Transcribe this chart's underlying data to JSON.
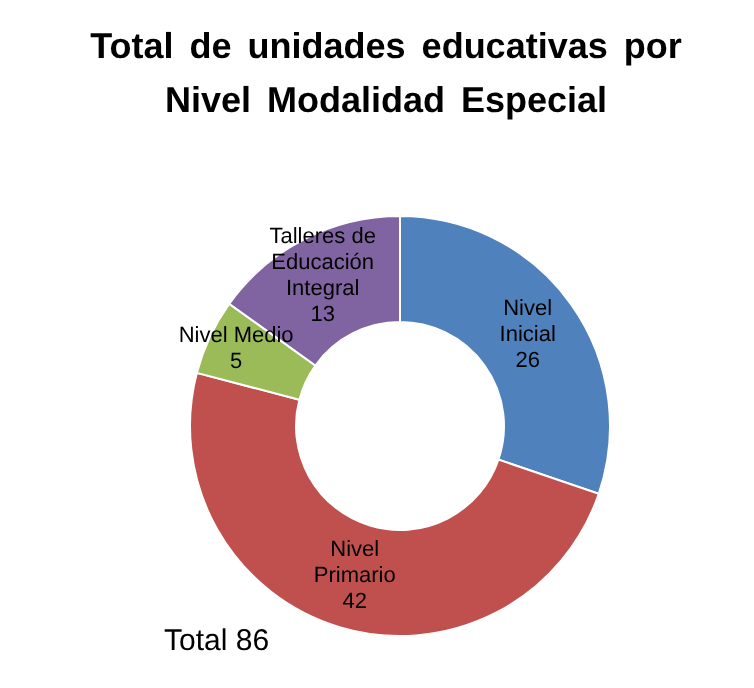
{
  "chart_data": {
    "type": "donut",
    "title": "Total de unidades educativas por Nivel Modalidad Especial",
    "categories": [
      "Nivel Inicial",
      "Nivel Primario",
      "Nivel Medio",
      "Talleres de Educación Integral"
    ],
    "values": [
      26,
      42,
      5,
      13
    ],
    "colors": [
      "#4f81bd",
      "#c0504d",
      "#9bbb59",
      "#8064a2"
    ],
    "data_labels": true,
    "annotations": [
      "Total 86"
    ]
  }
}
